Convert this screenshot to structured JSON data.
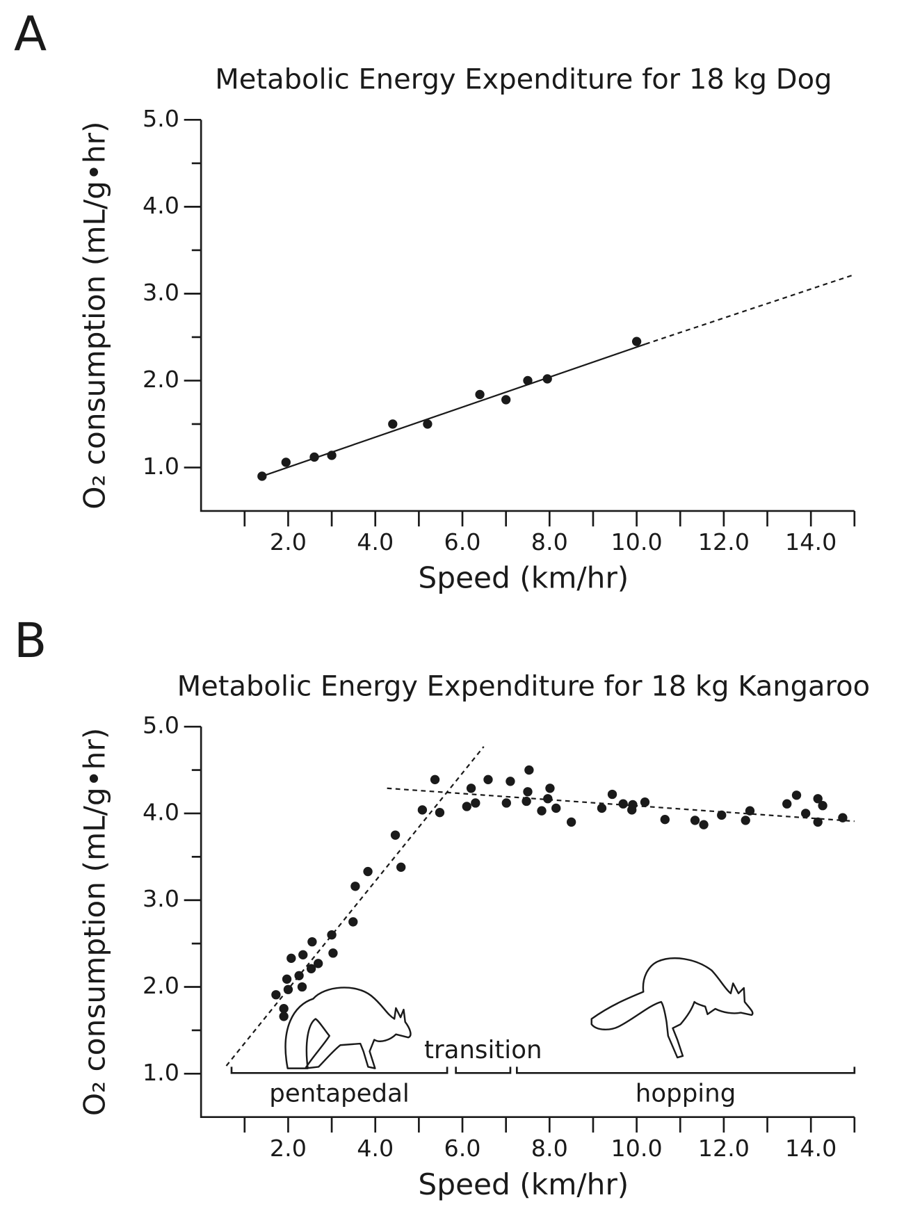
{
  "chart_data": [
    {
      "type": "scatter",
      "label": "A",
      "title": "Metabolic Energy Expenditure for 18 kg Dog",
      "xlabel": "Speed (km/hr)",
      "ylabel": "O₂ consumption (mL/g•hr)",
      "color": "#1a1a1a",
      "xlim": [
        0,
        15
      ],
      "ylim": [
        0.5,
        5
      ],
      "xticks": [
        {
          "value": 2,
          "label": "2.0"
        },
        {
          "value": 4,
          "label": "4.0"
        },
        {
          "value": 6,
          "label": "6.0"
        },
        {
          "value": 8,
          "label": "8.0"
        },
        {
          "value": 10,
          "label": "10.0"
        },
        {
          "value": 12,
          "label": "12.0"
        },
        {
          "value": 14,
          "label": "14.0"
        }
      ],
      "minor_xticks": [
        1,
        3,
        5,
        7,
        9,
        11,
        13,
        15
      ],
      "yticks": [
        {
          "value": 1,
          "label": "1.0"
        },
        {
          "value": 2,
          "label": "2.0"
        },
        {
          "value": 3,
          "label": "3.0"
        },
        {
          "value": 4,
          "label": "4.0"
        },
        {
          "value": 5,
          "label": "5.0"
        }
      ],
      "minor_yticks": [
        1.5,
        2.5,
        3.5,
        4.5
      ],
      "x": [
        1.4,
        1.95,
        2.6,
        3.0,
        4.4,
        5.2,
        6.4,
        7.0,
        7.5,
        7.95,
        10.0
      ],
      "values": [
        0.9,
        1.06,
        1.12,
        1.14,
        1.5,
        1.5,
        1.84,
        1.78,
        2.0,
        2.02,
        2.45
      ],
      "trend_lines": [
        {
          "style": "solid",
          "x": [
            1.4,
            10.2
          ],
          "values": [
            0.9,
            2.42
          ]
        },
        {
          "style": "dashed",
          "x": [
            10.2,
            15
          ],
          "values": [
            2.42,
            3.22
          ]
        }
      ]
    },
    {
      "type": "scatter",
      "label": "B",
      "title": "Metabolic Energy Expenditure for 18 kg Kangaroo",
      "xlabel": "Speed (km/hr)",
      "ylabel": "O₂ consumption (mL/g•hr)",
      "color": "#1a1a1a",
      "xlim": [
        0,
        15
      ],
      "ylim": [
        0.5,
        5
      ],
      "xticks": [
        {
          "value": 2,
          "label": "2.0"
        },
        {
          "value": 4,
          "label": "4.0"
        },
        {
          "value": 6,
          "label": "6.0"
        },
        {
          "value": 8,
          "label": "8.0"
        },
        {
          "value": 10,
          "label": "10.0"
        },
        {
          "value": 12,
          "label": "12.0"
        },
        {
          "value": 14,
          "label": "14.0"
        }
      ],
      "minor_xticks": [
        1,
        3,
        5,
        7,
        9,
        11,
        13,
        15
      ],
      "yticks": [
        {
          "value": 1,
          "label": "1.0"
        },
        {
          "value": 2,
          "label": "2.0"
        },
        {
          "value": 3,
          "label": "3.0"
        },
        {
          "value": 4,
          "label": "4.0"
        },
        {
          "value": 5,
          "label": "5.0"
        }
      ],
      "minor_yticks": [
        1.5,
        2.5,
        3.5,
        4.5
      ],
      "x": [
        1.72,
        1.9,
        1.9,
        1.97,
        2.0,
        2.07,
        2.25,
        2.32,
        2.34,
        2.53,
        2.55,
        2.69,
        3.0,
        3.03,
        3.49,
        3.54,
        3.83,
        4.46,
        4.59,
        5.08,
        5.37,
        5.48,
        6.1,
        6.2,
        6.3,
        6.59,
        7.01,
        7.1,
        7.5,
        7.53,
        7.47,
        7.82,
        7.96,
        8.01,
        8.15,
        8.5,
        9.2,
        9.44,
        9.69,
        9.89,
        9.91,
        10.19,
        10.65,
        11.34,
        11.54,
        11.95,
        12.5,
        12.6,
        13.45,
        13.67,
        13.88,
        14.16,
        14.16,
        14.27,
        14.73
      ],
      "values": [
        1.91,
        1.75,
        1.66,
        2.09,
        1.97,
        2.33,
        2.13,
        2.0,
        2.37,
        2.21,
        2.52,
        2.27,
        2.6,
        2.39,
        2.75,
        3.16,
        3.33,
        3.75,
        3.38,
        4.04,
        4.39,
        4.01,
        4.08,
        4.29,
        4.12,
        4.39,
        4.12,
        4.37,
        4.25,
        4.5,
        4.14,
        4.03,
        4.17,
        4.29,
        4.06,
        3.9,
        4.06,
        4.22,
        4.11,
        4.04,
        4.1,
        4.13,
        3.93,
        3.92,
        3.87,
        3.98,
        3.92,
        4.03,
        4.11,
        4.21,
        4.0,
        4.17,
        3.9,
        4.09,
        3.95
      ],
      "trend_lines": [
        {
          "style": "dashed",
          "x": [
            0.58,
            6.49
          ],
          "values": [
            1.09,
            4.77
          ]
        },
        {
          "style": "dashed",
          "x": [
            4.27,
            15
          ],
          "values": [
            4.29,
            3.91
          ]
        }
      ],
      "phases": [
        {
          "label": "pentapedal",
          "x": [
            0.7,
            5.65
          ]
        },
        {
          "label": "transition",
          "x": [
            5.85,
            7.1
          ]
        },
        {
          "label": "hopping",
          "x": [
            7.25,
            15
          ]
        }
      ]
    }
  ]
}
